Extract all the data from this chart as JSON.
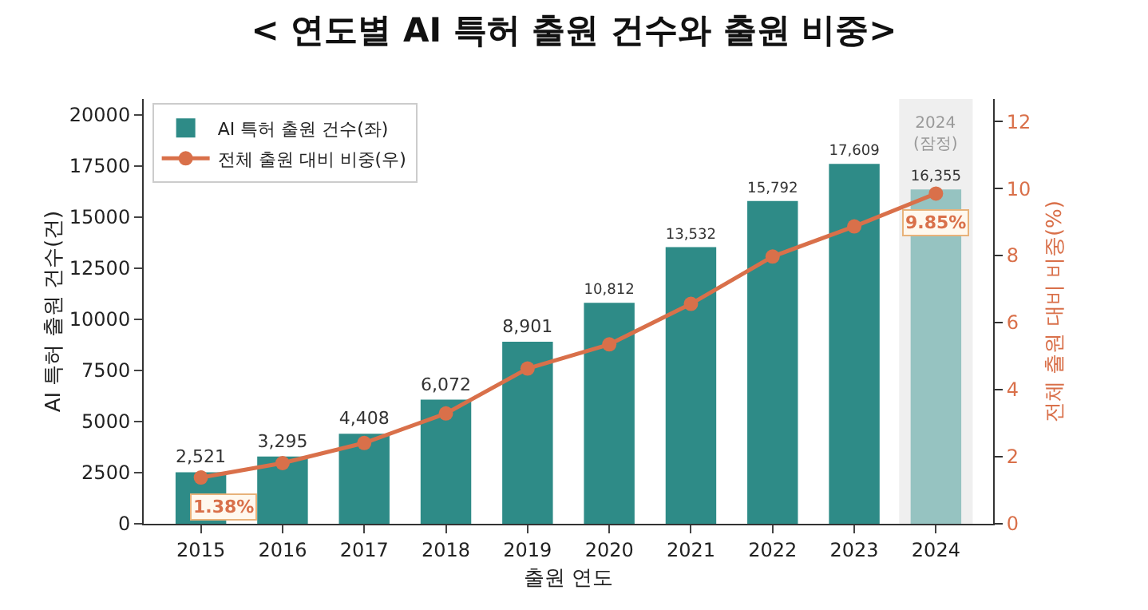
{
  "chart_data": {
    "type": "bar",
    "title": "< 연도별 AI 특허 출원 건수와 출원 비중>",
    "xlabel": "출원 연도",
    "ylabel": "AI 특허 출원 건수(건)",
    "y2label": "전체 출원 대비 비중(%)",
    "categories": [
      "2015",
      "2016",
      "2017",
      "2018",
      "2019",
      "2020",
      "2021",
      "2022",
      "2023",
      "2024"
    ],
    "series": [
      {
        "name": "AI 특허 출원 건수(좌)",
        "colors": [
          "#2e8b87",
          "#2e8b87",
          "#2e8b87",
          "#2e8b87",
          "#2e8b87",
          "#2e8b87",
          "#2e8b87",
          "#2e8b87",
          "#2e8b87",
          "#96c3c1"
        ],
        "values": [
          2521,
          3295,
          4408,
          6072,
          8901,
          10812,
          13532,
          15792,
          17609,
          16355
        ],
        "value_labels": [
          "2,521",
          "3,295",
          "4,408",
          "6,072",
          "8,901",
          "10,812",
          "13,532",
          "15,792",
          "17,609",
          "16,355"
        ]
      },
      {
        "name": "전체 출원 대비 비중(우)",
        "type": "line",
        "axis": "y2",
        "color": "#d9704a",
        "values": [
          1.38,
          1.81,
          2.41,
          3.29,
          4.63,
          5.35,
          6.56,
          7.97,
          8.87,
          9.85
        ],
        "value_labels": [
          "1.38%",
          null,
          null,
          null,
          null,
          null,
          null,
          null,
          null,
          "9.85%"
        ]
      }
    ],
    "bands": [
      {
        "axis": "x",
        "from": "2024",
        "to": "2024",
        "label": "2024\n(잠정)",
        "color": "#efefef"
      }
    ],
    "ylim": [
      0,
      20780
    ],
    "yticks": [
      0,
      2500,
      5000,
      7500,
      10000,
      12500,
      15000,
      17500,
      20000
    ],
    "y2lim": [
      0,
      12.67
    ],
    "y2ticks": [
      0,
      2,
      4,
      6,
      8,
      10,
      12
    ],
    "legend": "top left",
    "marker": "circle",
    "line_style": "solid",
    "grid": false
  }
}
